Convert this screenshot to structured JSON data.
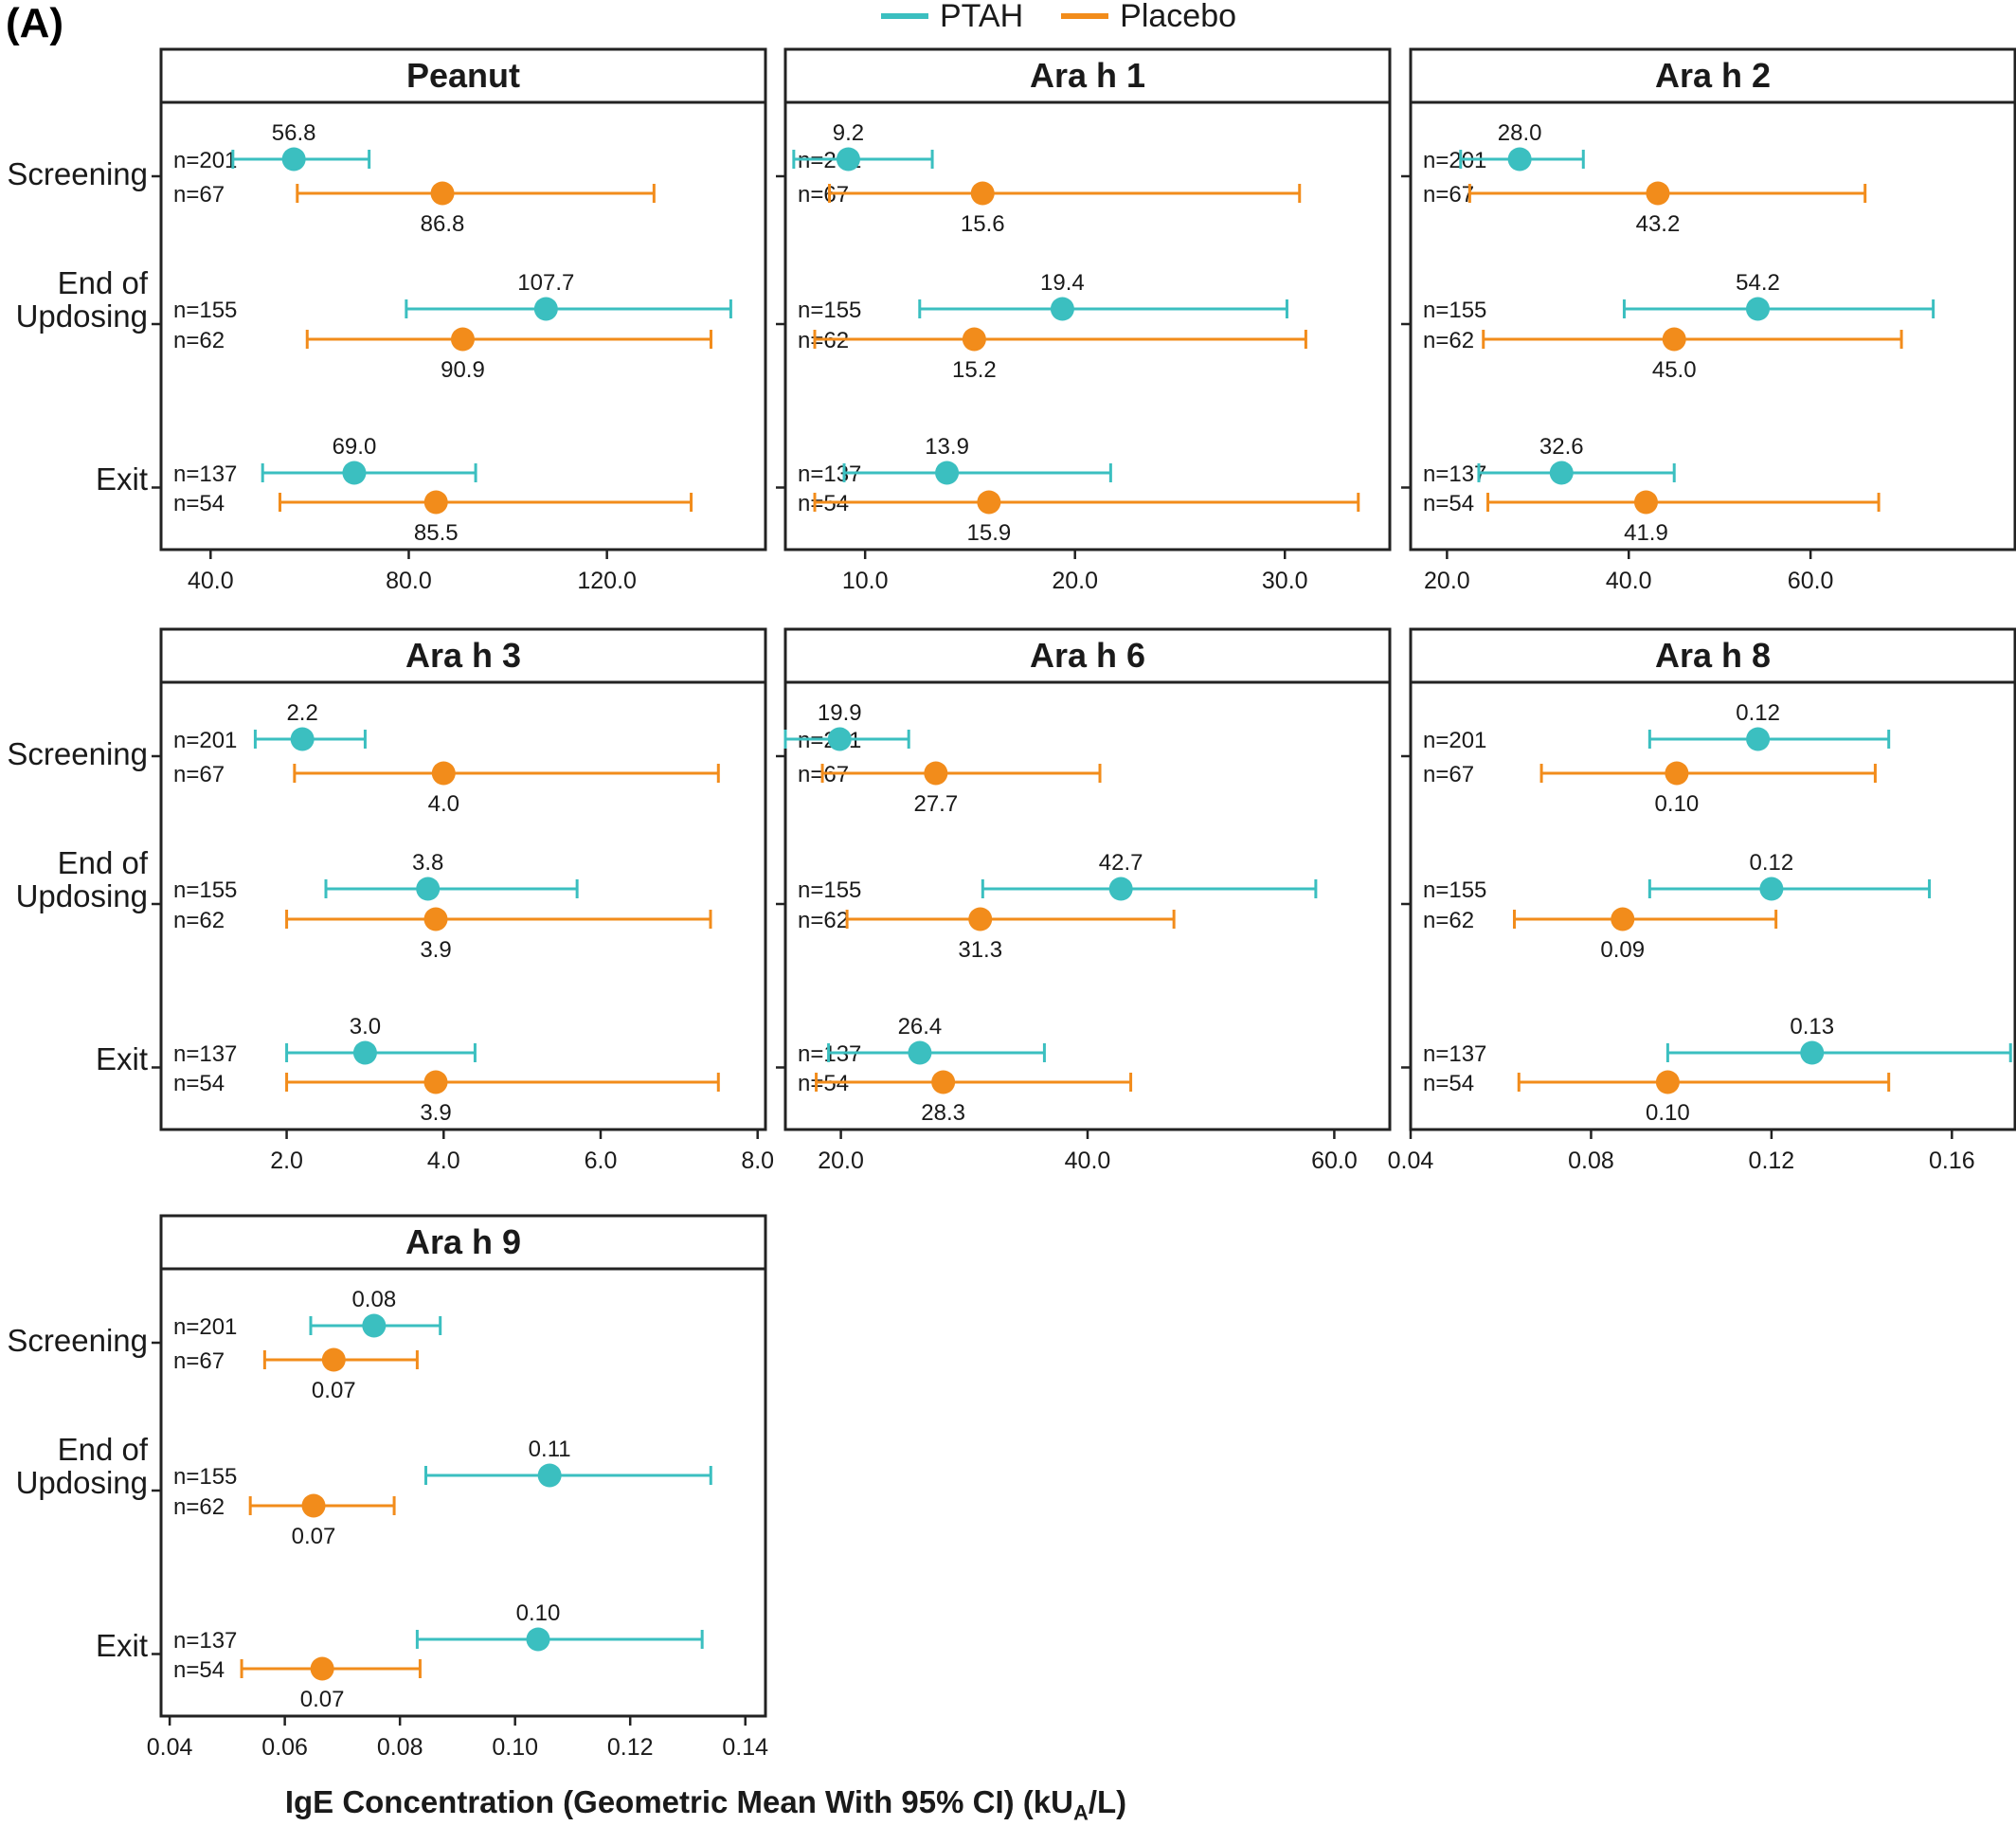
{
  "figure_label": "(A)",
  "legend": [
    {
      "name": "PTAH",
      "color": "#3bbfc0"
    },
    {
      "name": "Placebo",
      "color": "#f28c1b"
    }
  ],
  "x_axis_title": "IgE Concentration (Geometric Mean With 95% CI) (kU",
  "x_axis_title_sub": "A",
  "x_axis_title_end": "/L)",
  "visits": [
    "Screening",
    "End of Updosing",
    "Exit"
  ],
  "visit_label_lines": [
    [
      "Screening"
    ],
    [
      "End of",
      "Updosing"
    ],
    [
      "Exit"
    ]
  ],
  "counts": {
    "PTAH": [
      "n=201",
      "n=155",
      "n=137"
    ],
    "Placebo": [
      "n=67",
      "n=62",
      "n=54"
    ]
  },
  "colors": {
    "PTAH": "#3bbfc0",
    "Placebo": "#f28c1b"
  },
  "chart_data": [
    {
      "type": "scatter",
      "title": "Peanut",
      "xlim": [
        30,
        152
      ],
      "xticks": [
        40,
        80,
        120
      ],
      "tick_labels": [
        "40.0",
        "80.0",
        "120.0"
      ],
      "series": [
        {
          "name": "PTAH",
          "mean": [
            56.8,
            107.7,
            69.0
          ],
          "lower": [
            44.5,
            79.5,
            50.5
          ],
          "upper": [
            72.0,
            145.0,
            93.5
          ],
          "labels": [
            "56.8",
            "107.7",
            "69.0"
          ]
        },
        {
          "name": "Placebo",
          "mean": [
            86.8,
            90.9,
            85.5
          ],
          "lower": [
            57.5,
            59.5,
            54.0
          ],
          "upper": [
            129.5,
            141.0,
            137.0
          ],
          "labels": [
            "86.8",
            "90.9",
            "85.5"
          ]
        }
      ]
    },
    {
      "type": "scatter",
      "title": "Ara h 1",
      "xlim": [
        6.2,
        35.0
      ],
      "xticks": [
        10,
        20,
        30
      ],
      "tick_labels": [
        "10.0",
        "20.0",
        "30.0"
      ],
      "series": [
        {
          "name": "PTAH",
          "mean": [
            9.2,
            19.4,
            13.9
          ],
          "lower": [
            6.6,
            12.6,
            9.0
          ],
          "upper": [
            13.2,
            30.1,
            21.7
          ],
          "labels": [
            "9.2",
            "19.4",
            "13.9"
          ]
        },
        {
          "name": "Placebo",
          "mean": [
            15.6,
            15.2,
            15.9
          ],
          "lower": [
            8.3,
            7.6,
            7.6
          ],
          "upper": [
            30.7,
            31.0,
            33.5
          ],
          "labels": [
            "15.6",
            "15.2",
            "15.9"
          ]
        }
      ]
    },
    {
      "type": "scatter",
      "title": "Ara h 2",
      "xlim": [
        16.0,
        82.5
      ],
      "xticks": [
        20,
        40,
        60
      ],
      "tick_labels": [
        "20.0",
        "40.0",
        "60.0"
      ],
      "series": [
        {
          "name": "PTAH",
          "mean": [
            28.0,
            54.2,
            32.6
          ],
          "lower": [
            21.5,
            39.5,
            23.5
          ],
          "upper": [
            35.0,
            73.5,
            45.0
          ],
          "labels": [
            "28.0",
            "54.2",
            "32.6"
          ]
        },
        {
          "name": "Placebo",
          "mean": [
            43.2,
            45.0,
            41.9
          ],
          "lower": [
            22.5,
            24.0,
            24.5
          ],
          "upper": [
            66.0,
            70.0,
            67.5
          ],
          "labels": [
            "43.2",
            "45.0",
            "41.9"
          ]
        }
      ]
    },
    {
      "type": "scatter",
      "title": "Ara h 3",
      "xlim": [
        0.4,
        8.1
      ],
      "xticks": [
        2,
        4,
        6,
        8
      ],
      "tick_labels": [
        "2.0",
        "4.0",
        "6.0",
        "8.0"
      ],
      "series": [
        {
          "name": "PTAH",
          "mean": [
            2.2,
            3.8,
            3.0
          ],
          "lower": [
            1.6,
            2.5,
            2.0
          ],
          "upper": [
            3.0,
            5.7,
            4.4
          ],
          "labels": [
            "2.2",
            "3.8",
            "3.0"
          ]
        },
        {
          "name": "Placebo",
          "mean": [
            4.0,
            3.9,
            3.9
          ],
          "lower": [
            2.1,
            2.0,
            2.0
          ],
          "upper": [
            7.5,
            7.4,
            7.5
          ],
          "labels": [
            "4.0",
            "3.9",
            "3.9"
          ]
        }
      ]
    },
    {
      "type": "scatter",
      "title": "Ara h 6",
      "xlim": [
        15.5,
        64.5
      ],
      "xticks": [
        20,
        40,
        60
      ],
      "tick_labels": [
        "20.0",
        "40.0",
        "60.0"
      ],
      "series": [
        {
          "name": "PTAH",
          "mean": [
            19.9,
            42.7,
            26.4
          ],
          "lower": [
            15.5,
            31.5,
            19.0
          ],
          "upper": [
            25.5,
            58.5,
            36.5
          ],
          "labels": [
            "19.9",
            "42.7",
            "26.4"
          ]
        },
        {
          "name": "Placebo",
          "mean": [
            27.7,
            31.3,
            28.3
          ],
          "lower": [
            18.5,
            20.5,
            18.0
          ],
          "upper": [
            41.0,
            47.0,
            43.5
          ],
          "labels": [
            "27.7",
            "31.3",
            "28.3"
          ]
        }
      ]
    },
    {
      "type": "scatter",
      "title": "Ara h 8",
      "xlim": [
        0.04,
        0.174
      ],
      "xticks": [
        0.04,
        0.08,
        0.12,
        0.16
      ],
      "tick_labels": [
        "0.04",
        "0.08",
        "0.12",
        "0.16"
      ],
      "series": [
        {
          "name": "PTAH",
          "mean": [
            0.117,
            0.12,
            0.129
          ],
          "lower": [
            0.093,
            0.093,
            0.097
          ],
          "upper": [
            0.146,
            0.155,
            0.173
          ],
          "labels": [
            "0.12",
            "0.12",
            "0.13"
          ]
        },
        {
          "name": "Placebo",
          "mean": [
            0.099,
            0.087,
            0.097
          ],
          "lower": [
            0.069,
            0.063,
            0.064
          ],
          "upper": [
            0.143,
            0.121,
            0.146
          ],
          "labels": [
            "0.10",
            "0.09",
            "0.10"
          ]
        }
      ]
    },
    {
      "type": "scatter",
      "title": "Ara h 9",
      "xlim": [
        0.0385,
        0.1435
      ],
      "xticks": [
        0.04,
        0.06,
        0.08,
        0.1,
        0.12,
        0.14
      ],
      "tick_labels": [
        "0.04",
        "0.06",
        "0.08",
        "0.10",
        "0.12",
        "0.14"
      ],
      "series": [
        {
          "name": "PTAH",
          "mean": [
            0.0755,
            0.106,
            0.104
          ],
          "lower": [
            0.0645,
            0.0845,
            0.083
          ],
          "upper": [
            0.087,
            0.134,
            0.1325
          ],
          "labels": [
            "0.08",
            "0.11",
            "0.10"
          ]
        },
        {
          "name": "Placebo",
          "mean": [
            0.0685,
            0.065,
            0.0665
          ],
          "lower": [
            0.0565,
            0.054,
            0.0525
          ],
          "upper": [
            0.083,
            0.079,
            0.0835
          ],
          "labels": [
            "0.07",
            "0.07",
            "0.07"
          ]
        }
      ]
    }
  ]
}
